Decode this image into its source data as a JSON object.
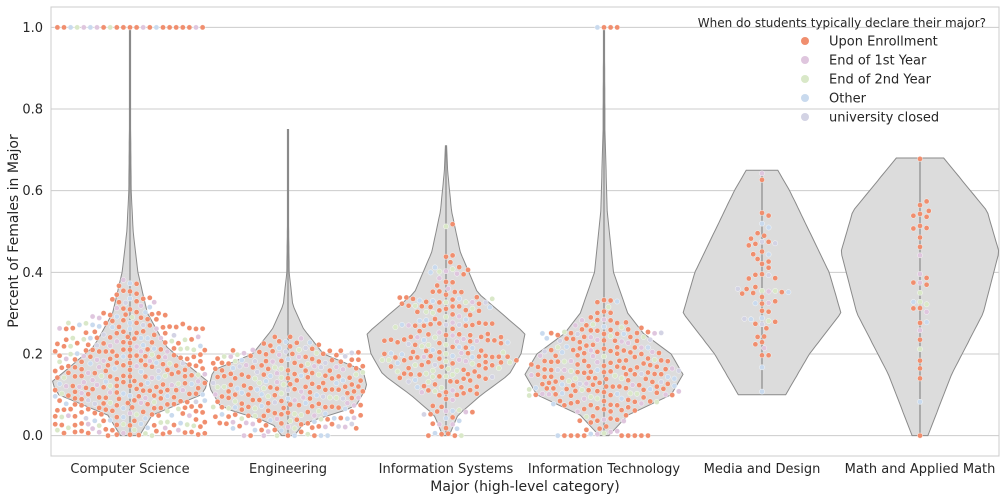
{
  "chart_data": {
    "type": "violin-swarm",
    "xlabel": "Major (high-level category)",
    "ylabel": "Percent of Females in Major",
    "ylim": [
      -0.05,
      1.05
    ],
    "yticks": [
      "0.0",
      "0.2",
      "0.4",
      "0.6",
      "0.8",
      "1.0"
    ],
    "grid": true,
    "legend_position": "top-right",
    "legend": {
      "title": "When do students typically declare their major?",
      "entries": [
        {
          "name": "Upon Enrollment",
          "color": "#f08e6e"
        },
        {
          "name": "End of 1st Year",
          "color": "#dfc6de"
        },
        {
          "name": "End of 2nd Year",
          "color": "#d9e8c8"
        },
        {
          "name": "Other",
          "color": "#c9daee"
        },
        {
          "name": "university closed",
          "color": "#d3d3e4"
        }
      ]
    },
    "categories": [
      "Computer Science",
      "Engineering",
      "Information Systems",
      "Information Technology",
      "Media and Design",
      "Math and Applied Math"
    ],
    "violin_color": "#dcdcdc",
    "distributions": [
      {
        "category": "Computer Science",
        "min": 0.0,
        "max": 1.0,
        "median": 0.13,
        "q1": 0.1,
        "q3": 0.2,
        "density": [
          [
            0.0,
            0.12
          ],
          [
            0.05,
            0.28
          ],
          [
            0.1,
            0.9
          ],
          [
            0.13,
            1.0
          ],
          [
            0.17,
            0.75
          ],
          [
            0.22,
            0.45
          ],
          [
            0.3,
            0.22
          ],
          [
            0.4,
            0.1
          ],
          [
            0.5,
            0.04
          ],
          [
            0.6,
            0.015
          ],
          [
            0.75,
            0.008
          ],
          [
            1.0,
            0.004
          ]
        ]
      },
      {
        "category": "Engineering",
        "min": 0.0,
        "max": 0.75,
        "median": 0.12,
        "q1": 0.08,
        "q3": 0.16,
        "density": [
          [
            0.0,
            0.08
          ],
          [
            0.03,
            0.2
          ],
          [
            0.07,
            0.85
          ],
          [
            0.12,
            1.0
          ],
          [
            0.16,
            0.95
          ],
          [
            0.2,
            0.45
          ],
          [
            0.26,
            0.2
          ],
          [
            0.32,
            0.06
          ],
          [
            0.4,
            0.015
          ],
          [
            0.55,
            0.005
          ],
          [
            0.75,
            0.003
          ]
        ]
      },
      {
        "category": "Information Systems",
        "min": 0.0,
        "max": 0.71,
        "median": 0.2,
        "q1": 0.15,
        "q3": 0.25,
        "density": [
          [
            0.0,
            0.04
          ],
          [
            0.05,
            0.15
          ],
          [
            0.1,
            0.45
          ],
          [
            0.15,
            0.8
          ],
          [
            0.2,
            0.95
          ],
          [
            0.25,
            1.0
          ],
          [
            0.3,
            0.7
          ],
          [
            0.35,
            0.4
          ],
          [
            0.45,
            0.18
          ],
          [
            0.55,
            0.07
          ],
          [
            0.65,
            0.02
          ],
          [
            0.71,
            0.008
          ]
        ]
      },
      {
        "category": "Information Technology",
        "min": 0.0,
        "max": 1.0,
        "median": 0.15,
        "q1": 0.1,
        "q3": 0.2,
        "density": [
          [
            0.0,
            0.06
          ],
          [
            0.05,
            0.3
          ],
          [
            0.1,
            0.85
          ],
          [
            0.15,
            1.0
          ],
          [
            0.2,
            0.85
          ],
          [
            0.25,
            0.5
          ],
          [
            0.3,
            0.3
          ],
          [
            0.4,
            0.12
          ],
          [
            0.55,
            0.04
          ],
          [
            0.75,
            0.012
          ],
          [
            1.0,
            0.006
          ]
        ]
      },
      {
        "category": "Media and Design",
        "min": 0.1,
        "max": 0.65,
        "median": 0.33,
        "q1": 0.27,
        "q3": 0.45,
        "density": [
          [
            0.1,
            0.3
          ],
          [
            0.2,
            0.6
          ],
          [
            0.3,
            1.0
          ],
          [
            0.4,
            0.85
          ],
          [
            0.5,
            0.6
          ],
          [
            0.6,
            0.35
          ],
          [
            0.65,
            0.2
          ]
        ]
      },
      {
        "category": "Math and Applied Math",
        "min": 0.0,
        "max": 0.68,
        "median": 0.45,
        "q1": 0.3,
        "q3": 0.55,
        "density": [
          [
            0.0,
            0.1
          ],
          [
            0.15,
            0.4
          ],
          [
            0.3,
            0.8
          ],
          [
            0.45,
            1.0
          ],
          [
            0.55,
            0.85
          ],
          [
            0.68,
            0.3
          ]
        ]
      }
    ],
    "swarm": [
      {
        "category": "Computer Science",
        "points": 520,
        "center": 0.14,
        "spread": 0.085,
        "top_points": 24,
        "zero_points": 22
      },
      {
        "category": "Engineering",
        "points": 480,
        "center": 0.12,
        "spread": 0.05,
        "top_points": 0,
        "zero_points": 8
      },
      {
        "category": "Information Systems",
        "points": 230,
        "center": 0.22,
        "spread": 0.11,
        "top_points": 0,
        "zero_points": 3
      },
      {
        "category": "Information Technology",
        "points": 260,
        "center": 0.16,
        "spread": 0.075,
        "top_points": 4,
        "zero_points": 10
      },
      {
        "category": "Media and Design",
        "points": 60,
        "center": 0.36,
        "spread": 0.12,
        "top_points": 0,
        "zero_points": 0
      },
      {
        "category": "Math and Applied Math",
        "points": 34,
        "center": 0.42,
        "spread": 0.14,
        "top_points": 0,
        "zero_points": 1
      }
    ]
  }
}
